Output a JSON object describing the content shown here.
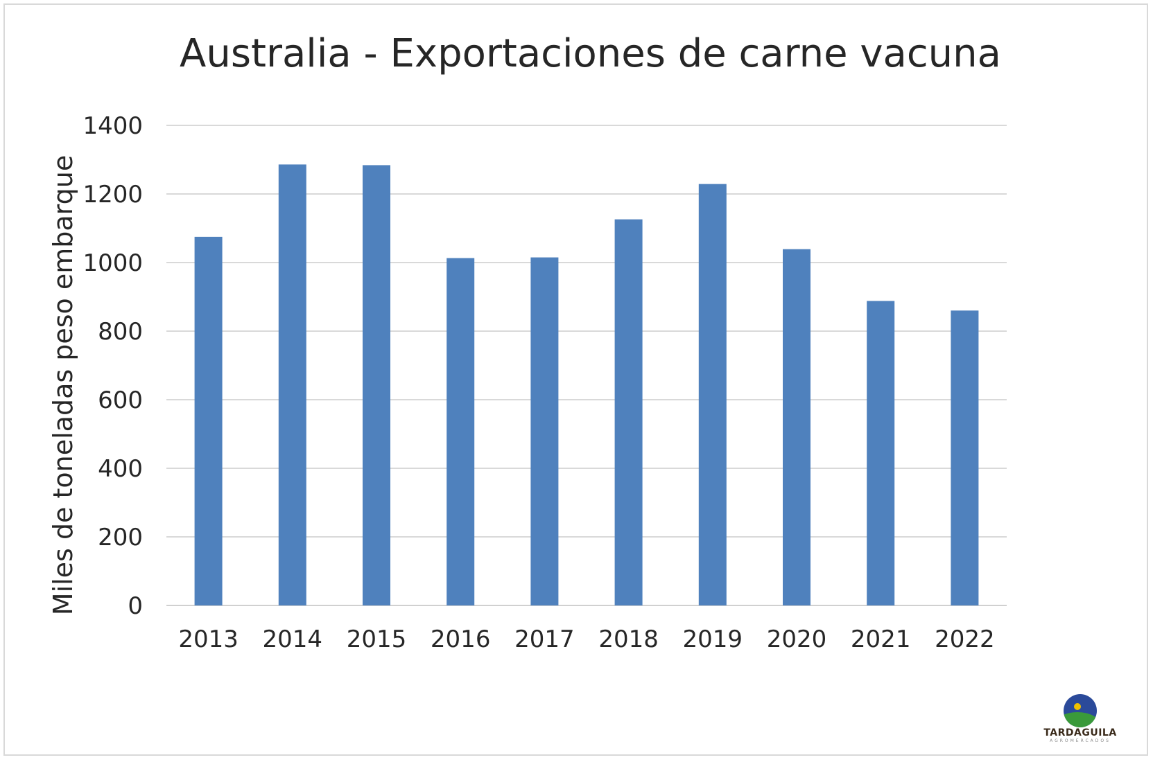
{
  "chart_data": {
    "type": "bar",
    "title": "Australia - Exportaciones de carne vacuna",
    "xlabel": "",
    "ylabel": "Miles de toneladas peso embarque",
    "categories": [
      "2013",
      "2014",
      "2015",
      "2016",
      "2017",
      "2018",
      "2019",
      "2020",
      "2021",
      "2022"
    ],
    "values": [
      1075,
      1286,
      1284,
      1013,
      1015,
      1126,
      1229,
      1039,
      888,
      860
    ],
    "ylim": [
      0,
      1400
    ],
    "yticks": [
      0,
      200,
      400,
      600,
      800,
      1000,
      1200,
      1400
    ],
    "grid": true,
    "legend": "none",
    "bar_color": "#4f81bd"
  },
  "logo": {
    "name": "TARDAGUILA",
    "subtitle": "AGROMERCADOS"
  }
}
